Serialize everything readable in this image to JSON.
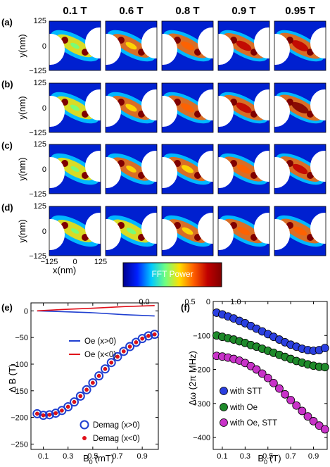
{
  "panel_labels": [
    "(a)",
    "(b)",
    "(c)",
    "(d)",
    "(e)",
    "(f)"
  ],
  "field_headers": [
    "0.1 T",
    "0.6 T",
    "0.8 T",
    "0.9 T",
    "0.95 T"
  ],
  "maps": {
    "ylabel": "y(nm)",
    "xlabel": "x(nm)",
    "ytick_labels": [
      "125",
      "0",
      "−125"
    ],
    "xtick_labels": [
      "−125",
      "0",
      "125"
    ],
    "intensity": [
      [
        0.42,
        0.56,
        0.7,
        0.84,
        0.92
      ],
      [
        0.44,
        0.58,
        0.72,
        0.86,
        0.95
      ],
      [
        0.38,
        0.5,
        0.62,
        0.74,
        0.82
      ],
      [
        0.36,
        0.46,
        0.56,
        0.66,
        0.72
      ]
    ]
  },
  "colorbar": {
    "label": "FFT Power",
    "ticks": [
      "0.0",
      "0.5",
      "1.0"
    ],
    "colors": [
      "#00008f",
      "#0020ff",
      "#00c8ff",
      "#70ff80",
      "#ffe000",
      "#ff6000",
      "#c00000",
      "#800000"
    ]
  },
  "chart_data": [
    {
      "type": "line",
      "panel": "(e)",
      "xlabel": "B",
      "xlabel_sub": "0",
      "xlabel_unit": "(mT)",
      "ylabel": "Δ B (T)",
      "xlim": [
        0.0,
        1.03
      ],
      "ylim": [
        -260,
        15
      ],
      "xticks": [
        0.1,
        0.3,
        0.5,
        0.7,
        0.9
      ],
      "yticks": [
        0,
        -50,
        -100,
        -150,
        -200,
        -250
      ],
      "series": [
        {
          "name": "Oe (x>0)",
          "color": "#1f3fd0",
          "style": "line",
          "x": [
            0.05,
            0.25,
            0.5,
            0.75,
            1.0
          ],
          "y": [
            0,
            -1.5,
            -3.5,
            -7,
            -9.5
          ]
        },
        {
          "name": "Oe (x<0)",
          "color": "#e0101a",
          "style": "line",
          "x": [
            0.05,
            0.25,
            0.5,
            0.75,
            1.0
          ],
          "y": [
            0,
            2.5,
            5,
            8,
            10
          ]
        },
        {
          "name": "Demag (x>0)",
          "color": "#1f3fd0",
          "style": "ring",
          "x": [
            0.05,
            0.1,
            0.15,
            0.2,
            0.25,
            0.3,
            0.35,
            0.4,
            0.45,
            0.5,
            0.55,
            0.6,
            0.65,
            0.7,
            0.75,
            0.8,
            0.85,
            0.9,
            0.95,
            1.0
          ],
          "y": [
            -193,
            -196,
            -195,
            -192,
            -187,
            -180,
            -171,
            -160,
            -148,
            -135,
            -122,
            -109,
            -97,
            -86,
            -76,
            -67,
            -59,
            -52,
            -47,
            -44
          ]
        },
        {
          "name": "Demag (x<0)",
          "color": "#e0101a",
          "style": "dot",
          "x": [
            0.05,
            0.1,
            0.15,
            0.2,
            0.25,
            0.3,
            0.35,
            0.4,
            0.45,
            0.5,
            0.55,
            0.6,
            0.65,
            0.7,
            0.75,
            0.8,
            0.85,
            0.9,
            0.95,
            1.0
          ],
          "y": [
            -193,
            -196,
            -195,
            -192,
            -187,
            -180,
            -171,
            -160,
            -148,
            -135,
            -122,
            -109,
            -97,
            -86,
            -76,
            -67,
            -59,
            -52,
            -47,
            -44
          ]
        }
      ]
    },
    {
      "type": "scatter",
      "panel": "(f)",
      "xlabel": "B",
      "xlabel_sub": "0",
      "xlabel_unit": "(T)",
      "ylabel": "Δω (2π MHz)",
      "xlim": [
        0.02,
        1.02
      ],
      "ylim": [
        -435,
        0
      ],
      "xticks": [
        0.1,
        0.3,
        0.5,
        0.7,
        0.9
      ],
      "yticks": [
        0,
        -100,
        -200,
        -300,
        -400
      ],
      "series": [
        {
          "name": "with STT",
          "color": "#2a3fe0",
          "x": [
            0.05,
            0.1,
            0.15,
            0.2,
            0.25,
            0.3,
            0.35,
            0.4,
            0.45,
            0.5,
            0.55,
            0.6,
            0.65,
            0.7,
            0.75,
            0.8,
            0.85,
            0.9,
            0.95,
            1.0
          ],
          "y": [
            -33,
            -38,
            -44,
            -50,
            -57,
            -64,
            -72,
            -80,
            -88,
            -96,
            -104,
            -112,
            -120,
            -127,
            -133,
            -139,
            -143,
            -145,
            -143,
            -137
          ]
        },
        {
          "name": "with Oe",
          "color": "#1e8a2a",
          "x": [
            0.05,
            0.1,
            0.15,
            0.2,
            0.25,
            0.3,
            0.35,
            0.4,
            0.45,
            0.5,
            0.55,
            0.6,
            0.65,
            0.7,
            0.75,
            0.8,
            0.85,
            0.9,
            0.95,
            1.0
          ],
          "y": [
            -100,
            -104,
            -108,
            -112,
            -117,
            -122,
            -128,
            -133,
            -139,
            -145,
            -151,
            -157,
            -163,
            -169,
            -175,
            -180,
            -185,
            -189,
            -192,
            -193
          ]
        },
        {
          "name": "with Oe, STT",
          "color": "#c832c8",
          "x": [
            0.05,
            0.1,
            0.15,
            0.2,
            0.25,
            0.3,
            0.35,
            0.4,
            0.45,
            0.5,
            0.55,
            0.6,
            0.65,
            0.7,
            0.75,
            0.8,
            0.85,
            0.9,
            0.95,
            1.0
          ],
          "y": [
            -160,
            -162,
            -165,
            -169,
            -174,
            -181,
            -190,
            -200,
            -212,
            -225,
            -240,
            -256,
            -273,
            -290,
            -306,
            -322,
            -338,
            -352,
            -365,
            -376
          ]
        }
      ]
    }
  ]
}
